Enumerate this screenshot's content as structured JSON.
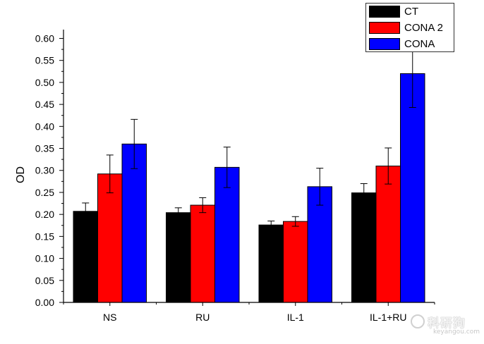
{
  "chart_data": {
    "type": "bar",
    "title": "",
    "xlabel": "",
    "ylabel": "OD",
    "categories": [
      "NS",
      "RU",
      "IL-1",
      "IL-1+RU"
    ],
    "ylim": [
      0,
      0.62
    ],
    "yticks": [
      "0.00",
      "0.05",
      "0.10",
      "0.15",
      "0.20",
      "0.25",
      "0.30",
      "0.35",
      "0.40",
      "0.45",
      "0.50",
      "0.55",
      "0.60"
    ],
    "legend_position": "top-right",
    "grid": false,
    "series": [
      {
        "name": "CT",
        "color": "#000000",
        "values": [
          0.207,
          0.204,
          0.176,
          0.249
        ],
        "errors": [
          0.019,
          0.011,
          0.009,
          0.021
        ]
      },
      {
        "name": "CONA 2",
        "color": "#ff0000",
        "values": [
          0.292,
          0.221,
          0.184,
          0.31
        ],
        "errors": [
          0.043,
          0.017,
          0.011,
          0.041
        ]
      },
      {
        "name": "CONA",
        "color": "#0000ff",
        "values": [
          0.36,
          0.307,
          0.263,
          0.52
        ],
        "errors": [
          0.056,
          0.046,
          0.042,
          0.077
        ]
      }
    ]
  },
  "watermark": {
    "cn": "科研狗",
    "en": "keyangou.com"
  }
}
